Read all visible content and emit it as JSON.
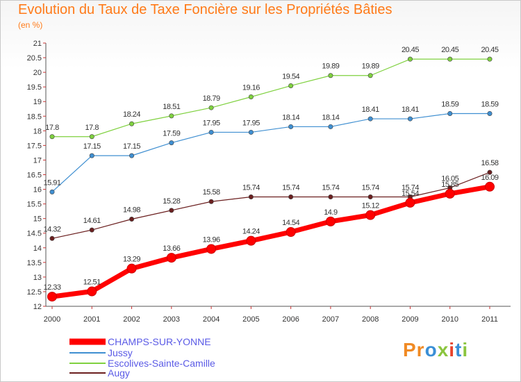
{
  "title": "Evolution du Taux de Taxe Foncière sur les Propriétés Bâties",
  "unit": "(en %)",
  "logo": {
    "text": "Proxiti"
  },
  "chart_data": {
    "type": "line",
    "title": "Evolution du Taux de Taxe Foncière sur les Propriétés Bâties",
    "ylabel": "(en %)",
    "ylim": [
      12,
      21
    ],
    "y_ticks": [
      "12",
      "12.5",
      "13",
      "13.5",
      "14",
      "14.5",
      "15",
      "15.5",
      "16",
      "16.5",
      "17",
      "17.5",
      "18",
      "18.5",
      "19",
      "19.5",
      "20",
      "20.5",
      "21"
    ],
    "x": [
      "2000",
      "2001",
      "2002",
      "2003",
      "2004",
      "2005",
      "2006",
      "2007",
      "2008",
      "2009",
      "2010",
      "2011"
    ],
    "grid": false,
    "legend_position": "bottom-left",
    "series": [
      {
        "name": "CHAMPS-SUR-YONNE",
        "color": "#ff0000",
        "labels": [
          "12.33",
          "12.51",
          "13.29",
          "13.66",
          "13.96",
          "14.24",
          "14.54",
          "14.9",
          "15.12",
          "15.54",
          "15.85",
          "16.09"
        ],
        "values": [
          12.33,
          12.51,
          13.29,
          13.66,
          13.96,
          14.24,
          14.54,
          14.9,
          15.12,
          15.54,
          15.85,
          16.09
        ]
      },
      {
        "name": "Jussy",
        "color": "#3f8fd1",
        "labels": [
          "15.91",
          "17.15",
          "17.15",
          "17.59",
          "17.95",
          "17.95",
          "18.14",
          "18.14",
          "18.41",
          "18.41",
          "18.59",
          "18.59"
        ],
        "values": [
          15.91,
          17.15,
          17.15,
          17.59,
          17.95,
          17.95,
          18.14,
          18.14,
          18.41,
          18.41,
          18.59,
          18.59
        ]
      },
      {
        "name": "Escolives-Sainte-Camille",
        "color": "#7fd13f",
        "labels": [
          "17.8",
          "17.8",
          "18.24",
          "18.51",
          "18.79",
          "19.16",
          "19.54",
          "19.89",
          "19.89",
          "20.45",
          "20.45",
          "20.45"
        ],
        "values": [
          17.8,
          17.8,
          18.24,
          18.51,
          18.79,
          19.16,
          19.54,
          19.89,
          19.89,
          20.45,
          20.45,
          20.45
        ]
      },
      {
        "name": "Augy",
        "color": "#6b1f1f",
        "labels": [
          "14.32",
          "14.61",
          "14.98",
          "15.28",
          "15.58",
          "15.74",
          "15.74",
          "15.74",
          "15.74",
          "15.74",
          "16.05",
          "16.58"
        ],
        "values": [
          14.32,
          14.61,
          14.98,
          15.28,
          15.58,
          15.74,
          15.74,
          15.74,
          15.74,
          15.74,
          16.05,
          16.58
        ]
      }
    ]
  }
}
